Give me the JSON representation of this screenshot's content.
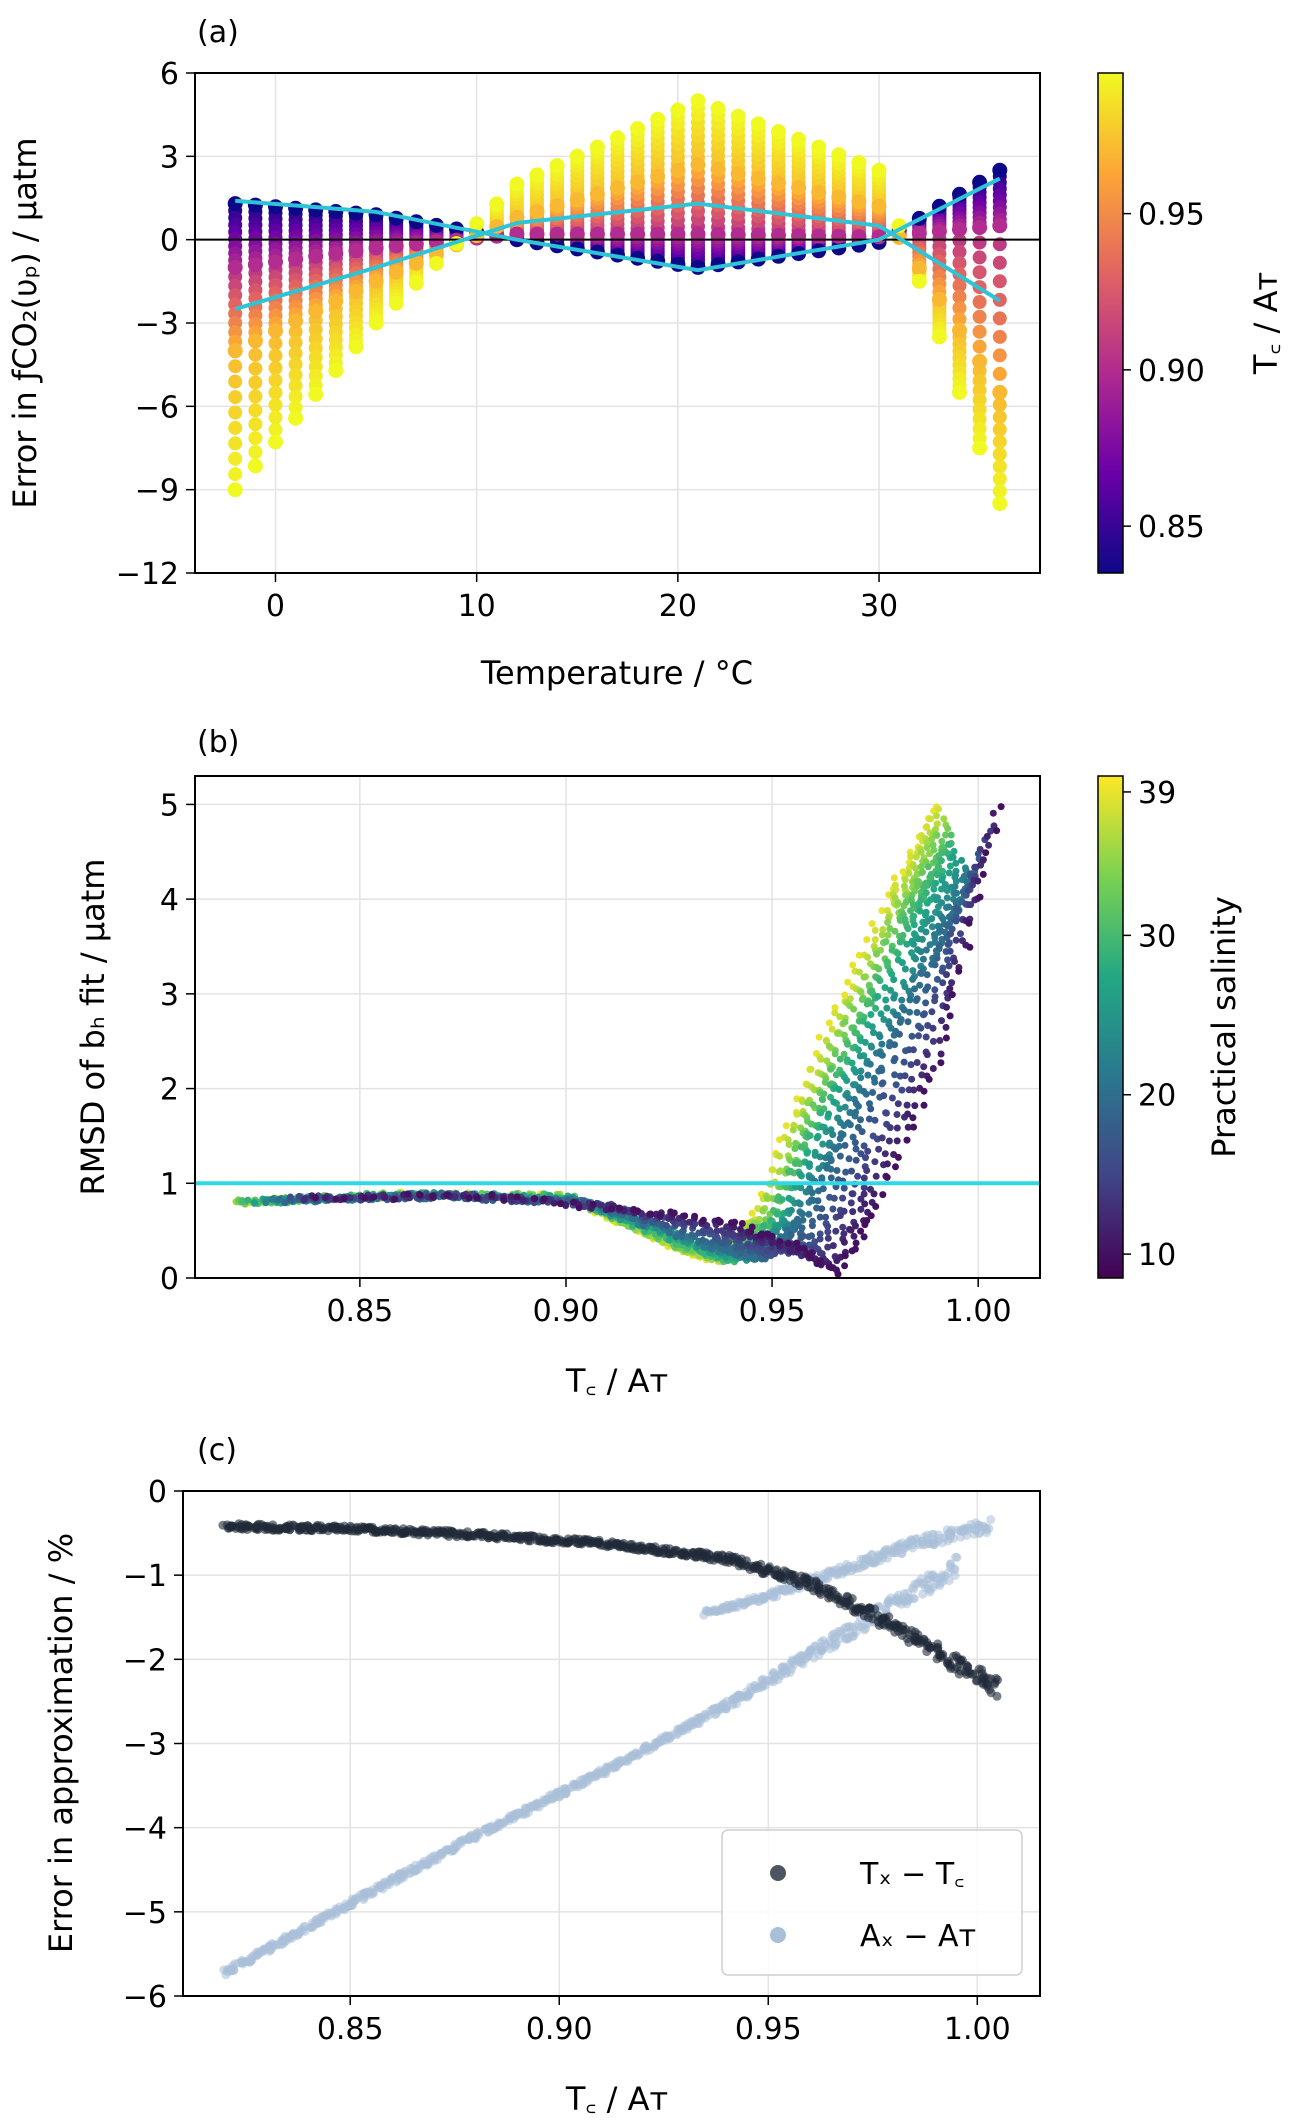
{
  "chart_data": [
    {
      "type": "scatter",
      "panel_label": "(a)",
      "xlabel": "Temperature / °C",
      "ylabel": "Error in ƒCO₂(υₚ) / µatm",
      "xlim": [
        -4.0,
        38.0
      ],
      "ylim": [
        -12,
        6
      ],
      "xticks": [
        0,
        10,
        20,
        30
      ],
      "yticks": [
        -12,
        -9,
        -6,
        -3,
        0,
        3,
        6
      ],
      "grid": true,
      "zero_line": 0,
      "x_temperatures_range": [
        -2,
        36
      ],
      "colorbar": {
        "label": "T꜀ / Aᴛ",
        "range": [
          0.835,
          0.995
        ],
        "ticks": [
          0.85,
          0.9,
          0.95
        ],
        "colormap": "plasma",
        "colors": [
          "#0d0887",
          "#6a00a8",
          "#b12a90",
          "#e16462",
          "#fca636",
          "#f0f921"
        ]
      },
      "series": [
        {
          "ratio": 0.995,
          "curve": [
            {
              "x": -2,
              "y": -9.0
            },
            {
              "x": 5,
              "y": -3.0
            },
            {
              "x": 12,
              "y": 2.0
            },
            {
              "x": 21,
              "y": 5.0
            },
            {
              "x": 30,
              "y": 2.5
            },
            {
              "x": 36,
              "y": -9.5
            }
          ]
        },
        {
          "ratio": 0.97,
          "curve": [
            {
              "x": -2,
              "y": -4.0
            },
            {
              "x": 5,
              "y": -1.5
            },
            {
              "x": 12,
              "y": 0.8
            },
            {
              "x": 21,
              "y": 2.7
            },
            {
              "x": 30,
              "y": 1.2
            },
            {
              "x": 36,
              "y": -5.5
            }
          ]
        },
        {
          "ratio": 0.9,
          "curve": [
            {
              "x": -2,
              "y": -1.0
            },
            {
              "x": 5,
              "y": -0.3
            },
            {
              "x": 12,
              "y": 0.2
            },
            {
              "x": 21,
              "y": 0.2
            },
            {
              "x": 30,
              "y": 0.1
            },
            {
              "x": 36,
              "y": 0.5
            }
          ]
        },
        {
          "ratio": 0.835,
          "curve": [
            {
              "x": -2,
              "y": 1.3
            },
            {
              "x": 5,
              "y": 0.9
            },
            {
              "x": 12,
              "y": 0.0
            },
            {
              "x": 21,
              "y": -1.0
            },
            {
              "x": 30,
              "y": -0.1
            },
            {
              "x": 36,
              "y": 2.5
            }
          ]
        }
      ],
      "fit_lines": [
        {
          "color": "#2ec4d6",
          "points": [
            {
              "x": -2,
              "y": -2.5
            },
            {
              "x": 5,
              "y": -1.0
            },
            {
              "x": 12,
              "y": 0.6
            },
            {
              "x": 21,
              "y": 1.3
            },
            {
              "x": 30,
              "y": 0.5
            },
            {
              "x": 36,
              "y": -2.2
            }
          ]
        },
        {
          "color": "#2ec4d6",
          "points": [
            {
              "x": -2,
              "y": 1.4
            },
            {
              "x": 5,
              "y": 1.0
            },
            {
              "x": 12,
              "y": 0.0
            },
            {
              "x": 21,
              "y": -1.1
            },
            {
              "x": 30,
              "y": 0.0
            },
            {
              "x": 36,
              "y": 2.2
            }
          ]
        }
      ]
    },
    {
      "type": "scatter",
      "panel_label": "(b)",
      "xlabel": "T꜀ / Aᴛ",
      "ylabel": "RMSD of bₕ fit / µatm",
      "xlim": [
        0.81,
        1.015
      ],
      "ylim": [
        0,
        5.3
      ],
      "xticks": [
        0.85,
        0.9,
        0.95,
        1.0
      ],
      "yticks": [
        0,
        1,
        2,
        3,
        4,
        5
      ],
      "grid": true,
      "hline": {
        "y": 1,
        "color": "#2fd8e6"
      },
      "colorbar": {
        "label": "Practical salinity",
        "range": [
          8.5,
          40
        ],
        "ticks": [
          10,
          20,
          30,
          39
        ],
        "colormap": "viridis",
        "colors": [
          "#440154",
          "#414487",
          "#2a788e",
          "#22a884",
          "#7ad151",
          "#fde725"
        ]
      },
      "series": [
        {
          "salinity": 39,
          "points": [
            {
              "x": 0.82,
              "y": 0.8
            },
            {
              "x": 0.86,
              "y": 0.88
            },
            {
              "x": 0.9,
              "y": 0.86
            },
            {
              "x": 0.925,
              "y": 0.35
            },
            {
              "x": 0.935,
              "y": 0.2
            },
            {
              "x": 0.945,
              "y": 0.6
            },
            {
              "x": 0.96,
              "y": 2.3
            },
            {
              "x": 0.978,
              "y": 4.0
            },
            {
              "x": 0.99,
              "y": 5.0
            }
          ]
        },
        {
          "salinity": 30,
          "points": [
            {
              "x": 0.822,
              "y": 0.8
            },
            {
              "x": 0.86,
              "y": 0.88
            },
            {
              "x": 0.9,
              "y": 0.86
            },
            {
              "x": 0.928,
              "y": 0.35
            },
            {
              "x": 0.94,
              "y": 0.2
            },
            {
              "x": 0.95,
              "y": 0.6
            },
            {
              "x": 0.965,
              "y": 2.1
            },
            {
              "x": 0.982,
              "y": 3.7
            },
            {
              "x": 0.993,
              "y": 4.6
            }
          ]
        },
        {
          "salinity": 20,
          "points": [
            {
              "x": 0.83,
              "y": 0.82
            },
            {
              "x": 0.87,
              "y": 0.87
            },
            {
              "x": 0.905,
              "y": 0.8
            },
            {
              "x": 0.935,
              "y": 0.35
            },
            {
              "x": 0.948,
              "y": 0.2
            },
            {
              "x": 0.957,
              "y": 0.6
            },
            {
              "x": 0.972,
              "y": 1.9
            },
            {
              "x": 0.988,
              "y": 3.3
            },
            {
              "x": 0.998,
              "y": 4.2
            }
          ]
        },
        {
          "salinity": 10,
          "points": [
            {
              "x": 0.84,
              "y": 0.85
            },
            {
              "x": 0.88,
              "y": 0.87
            },
            {
              "x": 0.915,
              "y": 0.72
            },
            {
              "x": 0.94,
              "y": 0.6
            },
            {
              "x": 0.955,
              "y": 0.35
            },
            {
              "x": 0.966,
              "y": 0.05
            },
            {
              "x": 0.975,
              "y": 0.7
            },
            {
              "x": 0.99,
              "y": 2.2
            },
            {
              "x": 1.005,
              "y": 5.0
            }
          ]
        }
      ]
    },
    {
      "type": "scatter",
      "panel_label": "(c)",
      "xlabel": "T꜀ / Aᴛ",
      "ylabel": "Error in approximation / %",
      "xlim": [
        0.81,
        1.015
      ],
      "ylim": [
        -6,
        0
      ],
      "xticks": [
        0.85,
        0.9,
        0.95,
        1.0
      ],
      "yticks": [
        -6,
        -5,
        -4,
        -3,
        -2,
        -1,
        0
      ],
      "grid": true,
      "legend": {
        "position": "lower-right"
      },
      "series": [
        {
          "name": "Tₓ − T꜀",
          "color": "#1f2a38",
          "points": [
            {
              "x": 0.82,
              "y": -0.42
            },
            {
              "x": 0.85,
              "y": -0.45
            },
            {
              "x": 0.88,
              "y": -0.52
            },
            {
              "x": 0.91,
              "y": -0.62
            },
            {
              "x": 0.94,
              "y": -0.8
            },
            {
              "x": 0.96,
              "y": -1.1
            },
            {
              "x": 0.98,
              "y": -1.6
            },
            {
              "x": 1.005,
              "y": -2.35
            }
          ]
        },
        {
          "name": "Aₓ − Aᴛ",
          "color": "#a9bfd8",
          "points": [
            {
              "x": 0.82,
              "y": -5.72
            },
            {
              "x": 0.85,
              "y": -4.9
            },
            {
              "x": 0.88,
              "y": -4.1
            },
            {
              "x": 0.91,
              "y": -3.35
            },
            {
              "x": 0.94,
              "y": -2.55
            },
            {
              "x": 0.96,
              "y": -1.95
            },
            {
              "x": 0.98,
              "y": -1.35
            },
            {
              "x": 0.995,
              "y": -0.9
            }
          ]
        },
        {
          "name": "Aₓ − Aᴛ branch",
          "color": "#a9bfd8",
          "points": [
            {
              "x": 0.935,
              "y": -1.45
            },
            {
              "x": 0.95,
              "y": -1.25
            },
            {
              "x": 0.97,
              "y": -0.9
            },
            {
              "x": 0.985,
              "y": -0.62
            },
            {
              "x": 1.003,
              "y": -0.42
            }
          ]
        }
      ]
    }
  ]
}
